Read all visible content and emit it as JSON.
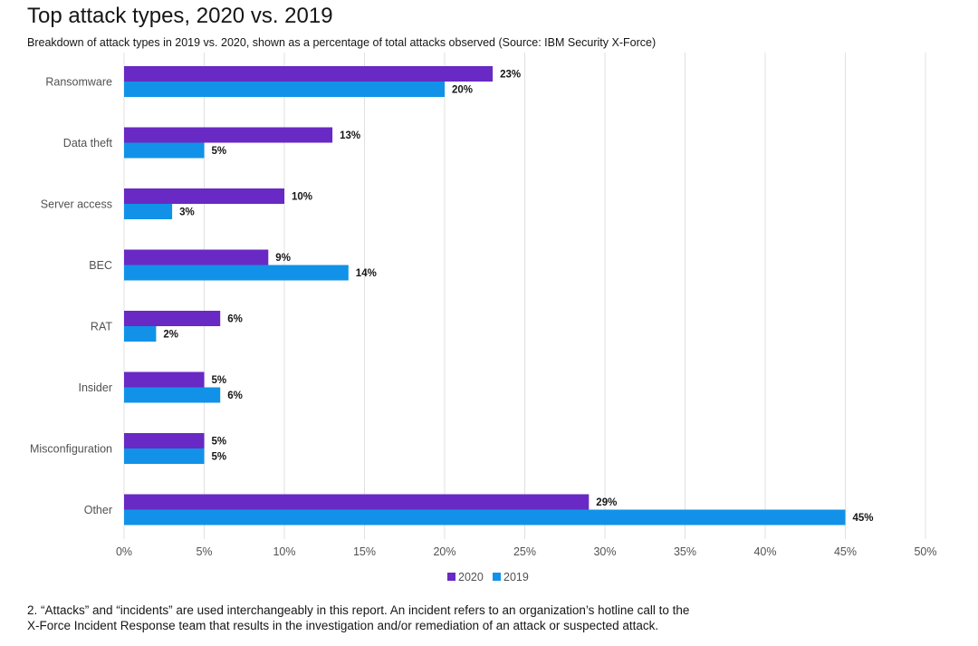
{
  "header": {
    "title": "Top attack types, 2020 vs. 2019",
    "subtitle": "Breakdown of attack types in 2019 vs. 2020, shown as a percentage of total attacks observed (Source: IBM Security X-Force)"
  },
  "chart_data": {
    "type": "bar",
    "orientation": "horizontal",
    "title": "Top attack types, 2020 vs. 2019",
    "subtitle": "Breakdown of attack types in 2019 vs. 2020, shown as a percentage of total attacks observed (Source: IBM Security X-Force)",
    "categories": [
      "Ransomware",
      "Data theft",
      "Server access",
      "BEC",
      "RAT",
      "Insider",
      "Misconfiguration",
      "Other"
    ],
    "series": [
      {
        "name": "2020",
        "color": "#6929c4",
        "values": [
          23,
          13,
          10,
          9,
          6,
          5,
          5,
          29
        ]
      },
      {
        "name": "2019",
        "color": "#1192e8",
        "values": [
          20,
          5,
          3,
          14,
          2,
          6,
          5,
          45
        ]
      }
    ],
    "xlim": [
      0,
      50
    ],
    "xticks": [
      0,
      5,
      10,
      15,
      20,
      25,
      30,
      35,
      40,
      45,
      50
    ],
    "tick_suffix": "%",
    "value_suffix": "%",
    "xlabel": "",
    "ylabel": "",
    "grid": true,
    "legend_position": "bottom-center"
  },
  "footnote": {
    "line1": "2. “Attacks” and “incidents” are used interchangeably in this report. An incident refers to an organization’s hotline call to the",
    "line2": "X-Force Incident Response team that results in the investigation and/or remediation of an attack or suspected attack."
  }
}
